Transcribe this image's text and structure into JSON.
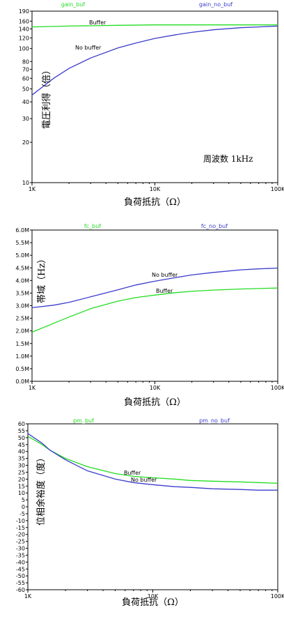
{
  "chart_data": [
    {
      "type": "line",
      "xscale": "log",
      "yscale": "log",
      "xlim": [
        1000,
        100000
      ],
      "ylim": [
        10,
        190
      ],
      "xlabel": "負荷抵抗（Ω）",
      "ylabel": "電圧利得（倍）",
      "xticks": [
        "1K",
        "10K",
        "100K"
      ],
      "yticks": [
        "10",
        "20",
        "30",
        "40",
        "50",
        "60",
        "70",
        "80",
        "100",
        "120",
        "140",
        "160",
        "190"
      ],
      "legend": [
        "gain_buf",
        "gain_no_buf"
      ],
      "annotations": [
        "Buffer",
        "No buffer"
      ],
      "note": "周波数 1kHz",
      "grid": false,
      "series": [
        {
          "name": "gain_buf",
          "color": "#22dd22",
          "x": [
            1000,
            2000,
            5000,
            10000,
            20000,
            50000,
            100000
          ],
          "y": [
            145,
            147,
            149,
            150,
            150,
            150,
            150
          ]
        },
        {
          "name": "gain_no_buf",
          "color": "#3b3bcc",
          "x": [
            1000,
            1500,
            2000,
            3000,
            5000,
            7000,
            10000,
            15000,
            20000,
            30000,
            50000,
            70000,
            100000
          ],
          "y": [
            45,
            60,
            71,
            85,
            101,
            110,
            119,
            127,
            132,
            138,
            143,
            145,
            147
          ]
        }
      ]
    },
    {
      "type": "line",
      "xscale": "log",
      "xlim": [
        1000,
        100000
      ],
      "ylim": [
        0,
        6.0
      ],
      "xlabel": "負荷抵抗（Ω）",
      "ylabel": "帯域（Hz）",
      "xticks": [
        "1K",
        "10K",
        "100K"
      ],
      "yticks": [
        "0.0M",
        "0.5M",
        "1.0M",
        "1.5M",
        "2.0M",
        "2.5M",
        "3.0M",
        "3.5M",
        "4.0M",
        "4.5M",
        "5.0M",
        "5.5M",
        "6.0M"
      ],
      "legend": [
        "fc_buf",
        "fc_no_buf"
      ],
      "annotations": [
        "No buffer",
        "Buffer"
      ],
      "grid": false,
      "series": [
        {
          "name": "fc_buf",
          "color": "#22dd22",
          "x": [
            1000,
            1500,
            2000,
            3000,
            5000,
            7000,
            10000,
            15000,
            20000,
            30000,
            50000,
            70000,
            100000
          ],
          "y": [
            1.95,
            2.3,
            2.55,
            2.88,
            3.18,
            3.32,
            3.42,
            3.52,
            3.57,
            3.62,
            3.66,
            3.68,
            3.7
          ]
        },
        {
          "name": "fc_no_buf",
          "color": "#3b3bcc",
          "x": [
            1000,
            1500,
            2000,
            3000,
            5000,
            7000,
            10000,
            15000,
            20000,
            30000,
            50000,
            70000,
            100000
          ],
          "y": [
            2.92,
            3.02,
            3.13,
            3.35,
            3.63,
            3.82,
            3.97,
            4.12,
            4.22,
            4.32,
            4.42,
            4.46,
            4.49
          ]
        }
      ]
    },
    {
      "type": "line",
      "xscale": "log",
      "xlim": [
        1000,
        100000
      ],
      "ylim": [
        -60,
        60
      ],
      "xlabel": "負荷抵抗（Ω）",
      "ylabel": "位相余裕度（度）",
      "xticks": [
        "1K",
        "10K",
        "100K"
      ],
      "yticks": [
        "-60",
        "-55",
        "-50",
        "-45",
        "-40",
        "-35",
        "-30",
        "-25",
        "-20",
        "-15",
        "-10",
        "-5",
        "0",
        "5",
        "10",
        "15",
        "20",
        "25",
        "30",
        "35",
        "40",
        "45",
        "50",
        "55",
        "60"
      ],
      "legend": [
        "pm_buf",
        "pm_no_buf"
      ],
      "annotations": [
        "Buffer",
        "No buffer"
      ],
      "grid": false,
      "series": [
        {
          "name": "pm_buf",
          "color": "#22dd22",
          "x": [
            1000,
            1300,
            1500,
            2000,
            3000,
            5000,
            7000,
            10000,
            15000,
            20000,
            30000,
            50000,
            70000,
            100000
          ],
          "y": [
            51,
            45,
            41,
            35,
            29,
            24,
            22,
            21,
            20,
            19,
            18.5,
            18,
            17.5,
            17
          ]
        },
        {
          "name": "pm_no_buf",
          "color": "#3b3bcc",
          "x": [
            1000,
            1300,
            1500,
            2000,
            3000,
            5000,
            7000,
            10000,
            15000,
            20000,
            30000,
            50000,
            70000,
            100000
          ],
          "y": [
            53,
            46,
            41,
            34,
            26,
            20,
            17.5,
            16,
            14.5,
            14,
            13,
            12.5,
            12,
            12
          ]
        }
      ]
    }
  ]
}
